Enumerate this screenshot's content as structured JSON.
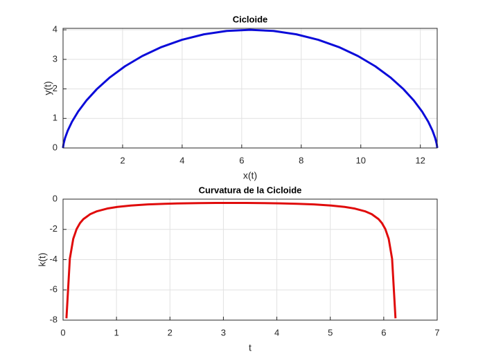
{
  "chart_data": [
    {
      "type": "line",
      "title": "Cicloide",
      "xlabel": "x(t)",
      "ylabel": "y(t)",
      "x": [
        0,
        0.0025,
        0.02,
        0.067,
        0.157,
        0.301,
        0.508,
        0.787,
        1.142,
        1.573,
        2.079,
        2.657,
        3.298,
        3.994,
        4.732,
        5.5,
        6.283,
        7.066,
        7.834,
        8.572,
        9.268,
        9.909,
        10.487,
        10.993,
        11.424,
        11.779,
        12.058,
        12.265,
        12.409,
        12.499,
        12.546,
        12.564,
        12.566
      ],
      "series": [
        {
          "color": "#0b0bd9",
          "values": [
            0,
            0.038,
            0.152,
            0.337,
            0.586,
            0.889,
            1.235,
            1.61,
            2,
            2.39,
            2.765,
            3.111,
            3.414,
            3.663,
            3.848,
            3.962,
            4,
            3.962,
            3.848,
            3.663,
            3.414,
            3.111,
            2.765,
            2.39,
            2,
            1.61,
            1.235,
            0.889,
            0.586,
            0.337,
            0.152,
            0.038,
            0
          ]
        }
      ],
      "xlim": [
        0,
        12.566
      ],
      "xticks": [
        2,
        4,
        6,
        8,
        10,
        12
      ],
      "ylim": [
        0,
        4.05
      ],
      "yticks": [
        0,
        1,
        2,
        3,
        4
      ],
      "grid": true
    },
    {
      "type": "line",
      "title": "Curvatura de la Cicloide",
      "xlabel": "t",
      "ylabel": "k(t)",
      "x": [
        0.0635,
        0.1269,
        0.1904,
        0.2539,
        0.3173,
        0.3808,
        0.5077,
        0.6347,
        0.8251,
        1.0155,
        1.2693,
        1.5867,
        1.904,
        2.2213,
        2.5387,
        2.856,
        3.1099,
        3.4272,
        3.7445,
        4.0619,
        4.3792,
        4.6965,
        5.0139,
        5.2677,
        5.4581,
        5.6485,
        5.7755,
        5.9024,
        5.9659,
        6.0293,
        6.0928,
        6.1563,
        6.2197
      ],
      "series": [
        {
          "color": "#e00b0b",
          "values": [
            -7.88,
            -3.94,
            -2.63,
            -1.975,
            -1.582,
            -1.321,
            -0.995,
            -0.801,
            -0.624,
            -0.514,
            -0.422,
            -0.351,
            -0.307,
            -0.279,
            -0.262,
            -0.253,
            -0.25,
            -0.253,
            -0.262,
            -0.279,
            -0.307,
            -0.351,
            -0.422,
            -0.514,
            -0.624,
            -0.801,
            -0.995,
            -1.321,
            -1.582,
            -1.975,
            -2.63,
            -3.94,
            -7.88
          ]
        }
      ],
      "xlim": [
        0,
        7
      ],
      "xticks": [
        0,
        1,
        2,
        3,
        4,
        5,
        6,
        7
      ],
      "ylim": [
        -8,
        0
      ],
      "yticks": [
        -8,
        -6,
        -4,
        -2,
        0
      ],
      "grid": true
    }
  ]
}
